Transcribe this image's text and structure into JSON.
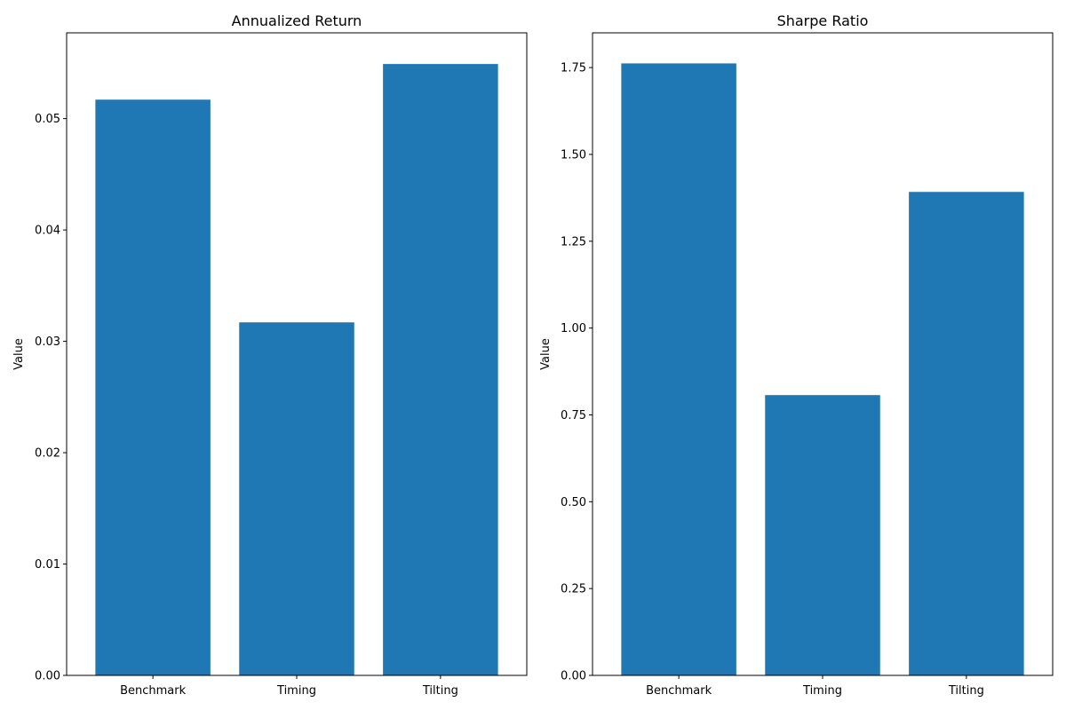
{
  "chart_data": [
    {
      "type": "bar",
      "title": "Annualized Return",
      "xlabel": "",
      "ylabel": "Value",
      "categories": [
        "Benchmark",
        "Timing",
        "Tilting"
      ],
      "values": [
        0.0517,
        0.0317,
        0.0549
      ],
      "ylim": [
        0,
        0.0577
      ],
      "yticks": [
        0.0,
        0.01,
        0.02,
        0.03,
        0.04,
        0.05
      ],
      "ytick_labels": [
        "0.00",
        "0.01",
        "0.02",
        "0.03",
        "0.04",
        "0.05"
      ],
      "grid": false,
      "bar_color": "#1f77b4"
    },
    {
      "type": "bar",
      "title": "Sharpe Ratio",
      "xlabel": "",
      "ylabel": "Value",
      "categories": [
        "Benchmark",
        "Timing",
        "Tilting"
      ],
      "values": [
        1.762,
        0.807,
        1.392
      ],
      "ylim": [
        0,
        1.85
      ],
      "yticks": [
        0.0,
        0.25,
        0.5,
        0.75,
        1.0,
        1.25,
        1.5,
        1.75
      ],
      "ytick_labels": [
        "0.00",
        "0.25",
        "0.50",
        "0.75",
        "1.00",
        "1.25",
        "1.50",
        "1.75"
      ],
      "grid": false,
      "bar_color": "#1f77b4"
    }
  ]
}
